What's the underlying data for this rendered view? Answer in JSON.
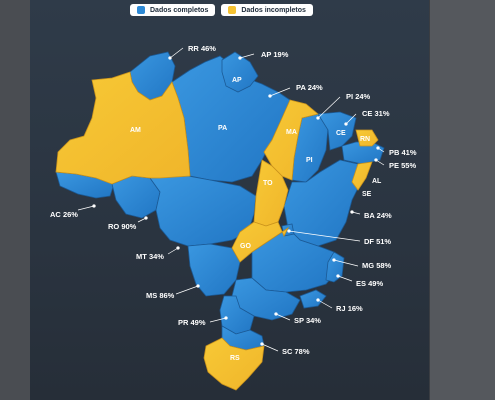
{
  "legend": {
    "complete_label": "Dados completos",
    "complete_color": "#2e8ad6",
    "incomplete_label": "Dados incompletos",
    "incomplete_color": "#f5c232"
  },
  "state_labels": {
    "AM": "AM",
    "PA": "PA",
    "AP": "AP",
    "MA": "MA",
    "PI": "PI",
    "CE": "CE",
    "RN": "RN",
    "AL": "AL",
    "SE": "SE",
    "TO": "TO",
    "GO": "GO",
    "RS": "RS"
  },
  "callouts": [
    {
      "code": "RR",
      "value": "46%"
    },
    {
      "code": "AP",
      "value": "19%"
    },
    {
      "code": "PA",
      "value": "24%"
    },
    {
      "code": "PI",
      "value": "24%"
    },
    {
      "code": "CE",
      "value": "31%"
    },
    {
      "code": "PB",
      "value": "41%"
    },
    {
      "code": "PE",
      "value": "55%"
    },
    {
      "code": "AC",
      "value": "26%"
    },
    {
      "code": "RO",
      "value": "90%"
    },
    {
      "code": "BA",
      "value": "24%"
    },
    {
      "code": "DF",
      "value": "51%"
    },
    {
      "code": "MT",
      "value": "34%"
    },
    {
      "code": "MG",
      "value": "58%"
    },
    {
      "code": "ES",
      "value": "49%"
    },
    {
      "code": "MS",
      "value": "86%"
    },
    {
      "code": "RJ",
      "value": "16%"
    },
    {
      "code": "PR",
      "value": "49%"
    },
    {
      "code": "SP",
      "value": "34%"
    },
    {
      "code": "SC",
      "value": "78%"
    }
  ]
}
